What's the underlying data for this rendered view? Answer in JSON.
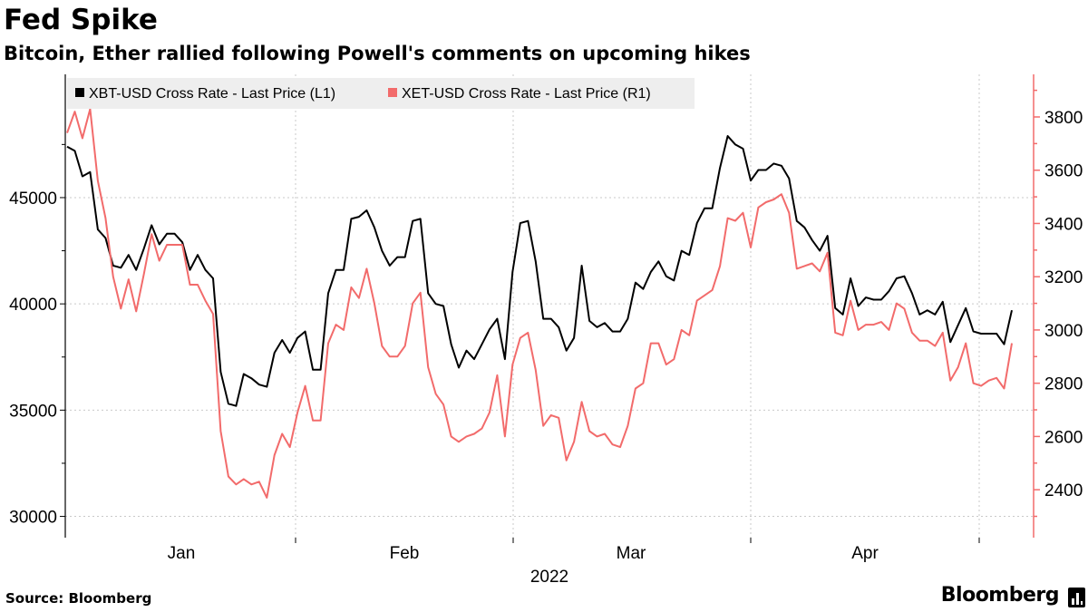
{
  "header": {
    "title": "Fed Spike",
    "subtitle": "Bitcoin, Ether rallied following Powell's comments on upcoming hikes"
  },
  "footer": {
    "source": "Source: Bloomberg",
    "brand": "Bloomberg"
  },
  "colors": {
    "btc": "#000000",
    "eth": "#f26b6b",
    "grid": "#c9c9c9",
    "legend_bg": "#eeeeee"
  },
  "chart_data": {
    "type": "line",
    "title": "Fed Spike",
    "subtitle": "Bitcoin, Ether rallied following Powell's comments on upcoming hikes",
    "xlabel": "2022",
    "x_ticks": [
      "Jan",
      "Feb",
      "Mar",
      "Apr"
    ],
    "legend_position": "top-left",
    "grid": true,
    "left_axis": {
      "ticks": [
        30000,
        35000,
        40000,
        45000
      ],
      "ylim": [
        29000,
        50800
      ]
    },
    "right_axis": {
      "ticks": [
        2400,
        2600,
        2800,
        3000,
        3200,
        3400,
        3600,
        3800
      ],
      "ylim": [
        2220,
        3960
      ]
    },
    "series": [
      {
        "name": "XBT-USD Cross Rate - Last Price (L1)",
        "axis": "left",
        "values": [
          47400,
          47200,
          46000,
          46200,
          43500,
          43100,
          41800,
          41700,
          42300,
          41600,
          42600,
          43700,
          42800,
          43300,
          43300,
          42900,
          41600,
          42300,
          41600,
          41200,
          36800,
          35300,
          35200,
          36700,
          36500,
          36200,
          36100,
          37700,
          38300,
          37700,
          38400,
          38700,
          36900,
          36900,
          40500,
          41600,
          41600,
          44000,
          44100,
          44400,
          43600,
          42500,
          41800,
          42200,
          42200,
          43900,
          44000,
          40500,
          40000,
          39900,
          38100,
          37000,
          37800,
          37400,
          38100,
          38800,
          39300,
          37400,
          41500,
          43800,
          43900,
          42000,
          39300,
          39300,
          38900,
          37800,
          38400,
          41800,
          39200,
          38900,
          39100,
          38700,
          38700,
          39300,
          41000,
          40700,
          41500,
          42000,
          41300,
          41100,
          42500,
          42300,
          43800,
          44500,
          44500,
          46400,
          47900,
          47500,
          47300,
          45800,
          46300,
          46300,
          46600,
          46500,
          45900,
          43900,
          43600,
          43000,
          42500,
          43200,
          39800,
          39500,
          41200,
          39900,
          40300,
          40200,
          40200,
          40600,
          41200,
          41300,
          40500,
          39500,
          39700,
          39500,
          40100,
          38200,
          39000,
          39800,
          38700,
          38600,
          38600,
          38600,
          38100,
          39700
        ]
      },
      {
        "name": "XET-USD Cross Rate - Last Price (R1)",
        "axis": "right",
        "values": [
          3740,
          3820,
          3720,
          3830,
          3560,
          3420,
          3200,
          3080,
          3190,
          3070,
          3210,
          3360,
          3260,
          3320,
          3320,
          3320,
          3170,
          3170,
          3110,
          3060,
          2620,
          2450,
          2420,
          2440,
          2420,
          2430,
          2370,
          2530,
          2610,
          2560,
          2690,
          2790,
          2660,
          2660,
          2950,
          3020,
          3000,
          3160,
          3120,
          3230,
          3100,
          2940,
          2900,
          2900,
          2940,
          3100,
          3140,
          2860,
          2760,
          2720,
          2600,
          2580,
          2600,
          2610,
          2630,
          2690,
          2830,
          2600,
          2870,
          2970,
          2990,
          2850,
          2640,
          2680,
          2670,
          2510,
          2580,
          2730,
          2620,
          2600,
          2610,
          2570,
          2560,
          2640,
          2780,
          2800,
          2950,
          2950,
          2870,
          2890,
          3000,
          2980,
          3110,
          3130,
          3150,
          3240,
          3420,
          3410,
          3440,
          3310,
          3460,
          3480,
          3490,
          3510,
          3440,
          3230,
          3240,
          3250,
          3220,
          3290,
          2990,
          2980,
          3110,
          3000,
          3020,
          3020,
          3030,
          3000,
          3100,
          3080,
          2990,
          2960,
          2960,
          2940,
          2990,
          2810,
          2860,
          2950,
          2800,
          2790,
          2810,
          2820,
          2780,
          2950
        ]
      }
    ]
  }
}
